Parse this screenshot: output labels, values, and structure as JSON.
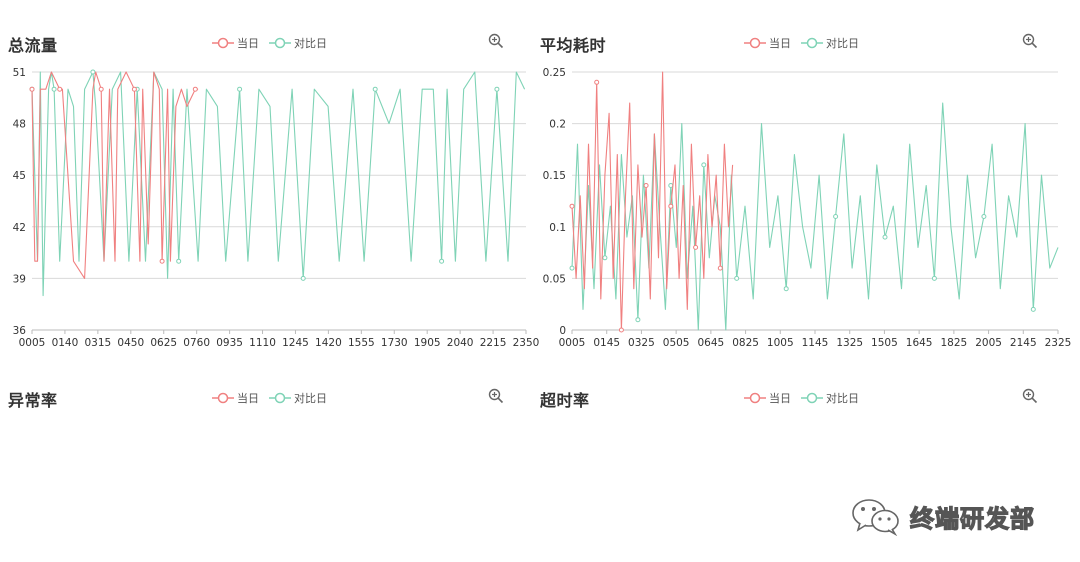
{
  "legend": {
    "today": "当日",
    "compare": "对比日"
  },
  "colors": {
    "today": "#f08080",
    "compare": "#7fd3b6",
    "grid": "#d9d9d9",
    "axis": "#bbbbbb"
  },
  "icons": {
    "zoom": "zoom-in-icon",
    "legend_marker": "circle-line-icon",
    "watermark": "wechat-icon"
  },
  "watermark": {
    "text": "终端研发部"
  },
  "panels": {
    "total": {
      "title": "总流量"
    },
    "latency": {
      "title": "平均耗时"
    },
    "error": {
      "title": "异常率"
    },
    "timeout": {
      "title": "超时率"
    }
  },
  "chart_data": [
    {
      "id": "total",
      "type": "line",
      "title": "总流量",
      "ylim": [
        36,
        51
      ],
      "yticks": [
        "51",
        "48",
        "45",
        "42",
        "39",
        "36"
      ],
      "xticks": [
        "0005",
        "0140",
        "0315",
        "0450",
        "0625",
        "0760",
        "0935",
        "1110",
        "1245",
        "1420",
        "1555",
        "1730",
        "1905",
        "2040",
        "2215",
        "2350"
      ],
      "grid": true,
      "legend_position": "top-center",
      "series": [
        {
          "name": "当日",
          "color": "#f08080",
          "x": [
            0,
            2,
            4,
            6,
            10,
            14,
            20,
            22,
            30,
            38,
            44,
            46,
            50,
            52,
            56,
            60,
            62,
            68,
            74,
            78,
            80,
            84,
            88,
            92,
            94,
            98,
            100,
            104,
            108,
            112,
            118,
            120
          ],
          "values": [
            50,
            40,
            40,
            50,
            50,
            51,
            50,
            50,
            40,
            39,
            50,
            51,
            50,
            40,
            50,
            40,
            50,
            51,
            50,
            40,
            50,
            41,
            51,
            50,
            40,
            50,
            40,
            49,
            50,
            49,
            50,
            50
          ]
        },
        {
          "name": "对比日",
          "color": "#7fd3b6",
          "x": [
            0,
            4,
            6,
            8,
            12,
            14,
            16,
            20,
            26,
            30,
            34,
            38,
            44,
            46,
            52,
            58,
            64,
            70,
            76,
            82,
            88,
            94,
            98,
            102,
            106,
            112,
            120,
            126,
            134,
            140,
            150,
            156,
            164,
            172,
            178,
            188,
            196,
            204,
            214,
            222,
            232,
            240,
            248,
            258,
            266,
            274,
            282,
            290,
            296,
            300,
            306,
            312,
            320,
            328,
            336,
            344,
            350,
            356
          ],
          "values": [
            50,
            40,
            51,
            38,
            50,
            51,
            50,
            40,
            50,
            49,
            40,
            50,
            51,
            49,
            40,
            50,
            51,
            40,
            50,
            40,
            51,
            50,
            39,
            50,
            40,
            50,
            40,
            50,
            49,
            40,
            50,
            40,
            50,
            49,
            40,
            50,
            39,
            50,
            49,
            40,
            50,
            40,
            50,
            48,
            50,
            40,
            50,
            50,
            40,
            50,
            40,
            50,
            51,
            40,
            50,
            40,
            51,
            50
          ]
        }
      ]
    },
    {
      "id": "latency",
      "type": "line",
      "title": "平均耗时",
      "ylim": [
        0,
        0.25
      ],
      "yticks": [
        "0.25",
        "0.2",
        "0.15",
        "0.1",
        "0.05",
        "0"
      ],
      "xticks": [
        "0005",
        "0145",
        "0325",
        "0505",
        "0645",
        "0825",
        "1005",
        "1145",
        "1325",
        "1505",
        "1645",
        "1825",
        "2005",
        "2145",
        "2325"
      ],
      "grid": true,
      "legend_position": "top-center",
      "series": [
        {
          "name": "当日",
          "color": "#f08080",
          "x": [
            0,
            3,
            6,
            9,
            12,
            15,
            18,
            21,
            24,
            27,
            30,
            33,
            36,
            39,
            42,
            45,
            48,
            51,
            54,
            57,
            60,
            63,
            66,
            69,
            72,
            75,
            78,
            81,
            84,
            87,
            90,
            93,
            96,
            99,
            102,
            105,
            108,
            111,
            114,
            117
          ],
          "values": [
            0.12,
            0.05,
            0.13,
            0.04,
            0.18,
            0.06,
            0.24,
            0.03,
            0.15,
            0.21,
            0.05,
            0.17,
            0.0,
            0.13,
            0.22,
            0.04,
            0.16,
            0.09,
            0.14,
            0.03,
            0.19,
            0.07,
            0.25,
            0.04,
            0.12,
            0.16,
            0.05,
            0.14,
            0.02,
            0.18,
            0.08,
            0.13,
            0.05,
            0.17,
            0.1,
            0.15,
            0.06,
            0.18,
            0.1,
            0.16
          ]
        },
        {
          "name": "对比日",
          "color": "#7fd3b6",
          "x": [
            0,
            4,
            8,
            12,
            16,
            20,
            24,
            28,
            32,
            36,
            40,
            44,
            48,
            52,
            56,
            60,
            64,
            68,
            72,
            76,
            80,
            84,
            88,
            92,
            96,
            100,
            104,
            108,
            112,
            116,
            120,
            126,
            132,
            138,
            144,
            150,
            156,
            162,
            168,
            174,
            180,
            186,
            192,
            198,
            204,
            210,
            216,
            222,
            228,
            234,
            240,
            246,
            252,
            258,
            264,
            270,
            276,
            282,
            288,
            294,
            300,
            306,
            312,
            318,
            324,
            330,
            336,
            342,
            348,
            354
          ],
          "values": [
            0.06,
            0.18,
            0.02,
            0.14,
            0.04,
            0.16,
            0.07,
            0.12,
            0.03,
            0.17,
            0.09,
            0.13,
            0.01,
            0.15,
            0.06,
            0.19,
            0.1,
            0.02,
            0.14,
            0.08,
            0.2,
            0.05,
            0.12,
            0.0,
            0.16,
            0.07,
            0.13,
            0.1,
            0.0,
            0.15,
            0.05,
            0.12,
            0.03,
            0.2,
            0.08,
            0.13,
            0.04,
            0.17,
            0.1,
            0.06,
            0.15,
            0.03,
            0.11,
            0.19,
            0.06,
            0.13,
            0.03,
            0.16,
            0.09,
            0.12,
            0.04,
            0.18,
            0.08,
            0.14,
            0.05,
            0.22,
            0.1,
            0.03,
            0.15,
            0.07,
            0.11,
            0.18,
            0.04,
            0.13,
            0.09,
            0.2,
            0.02,
            0.15,
            0.06,
            0.08
          ]
        }
      ]
    },
    {
      "id": "error",
      "type": "line",
      "title": "异常率",
      "series": [
        {
          "name": "当日",
          "color": "#f08080",
          "values": []
        },
        {
          "name": "对比日",
          "color": "#7fd3b6",
          "values": []
        }
      ]
    },
    {
      "id": "timeout",
      "type": "line",
      "title": "超时率",
      "series": [
        {
          "name": "当日",
          "color": "#f08080",
          "values": []
        },
        {
          "name": "对比日",
          "color": "#7fd3b6",
          "values": []
        }
      ]
    }
  ]
}
